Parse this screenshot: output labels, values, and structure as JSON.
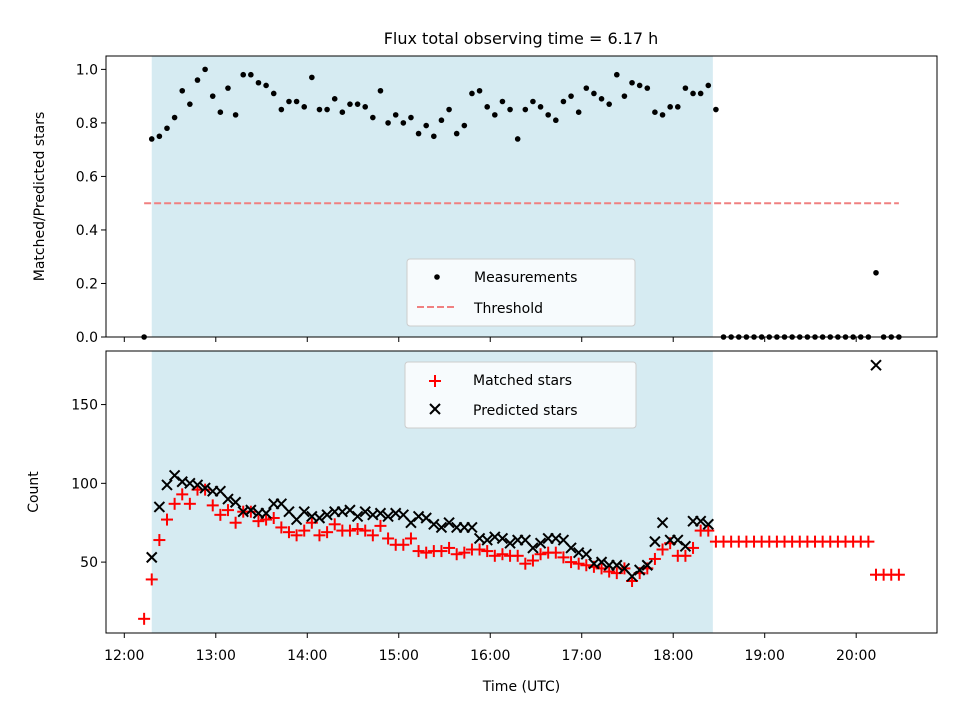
{
  "chart_data": {
    "title": "Flux total observing time = 6.17 h",
    "shaded_interval": [
      "12:18",
      "18:26"
    ],
    "shade_color": "#add8e6",
    "top": {
      "type": "scatter",
      "ylabel": "Matched/Predicted stars",
      "ylim": [
        0,
        1.05
      ],
      "yticks": [
        0.0,
        0.2,
        0.4,
        0.6,
        0.8,
        1.0
      ],
      "ytick_labels": [
        "0.0",
        "0.2",
        "0.4",
        "0.6",
        "0.8",
        "1.0"
      ],
      "legend": [
        "Measurements",
        "Threshold"
      ],
      "legend_placement": "lower center",
      "series": [
        {
          "name": "Measurements",
          "marker": "dot",
          "color": "#000000",
          "x": [
            "12:13",
            "12:18",
            "12:23",
            "12:28",
            "12:33",
            "12:38",
            "12:43",
            "12:48",
            "12:53",
            "12:58",
            "13:03",
            "13:08",
            "13:13",
            "13:18",
            "13:23",
            "13:28",
            "13:33",
            "13:38",
            "13:43",
            "13:48",
            "13:53",
            "13:58",
            "14:03",
            "14:08",
            "14:13",
            "14:18",
            "14:23",
            "14:28",
            "14:33",
            "14:38",
            "14:43",
            "14:48",
            "14:53",
            "14:58",
            "15:03",
            "15:08",
            "15:13",
            "15:18",
            "15:23",
            "15:28",
            "15:33",
            "15:38",
            "15:43",
            "15:48",
            "15:53",
            "15:58",
            "16:03",
            "16:08",
            "16:13",
            "16:18",
            "16:23",
            "16:28",
            "16:33",
            "16:38",
            "16:43",
            "16:48",
            "16:53",
            "16:58",
            "17:03",
            "17:08",
            "17:13",
            "17:18",
            "17:23",
            "17:28",
            "17:33",
            "17:38",
            "17:43",
            "17:48",
            "17:53",
            "17:58",
            "18:03",
            "18:08",
            "18:13",
            "18:18",
            "18:23",
            "18:28",
            "18:33",
            "18:38",
            "18:43",
            "18:48",
            "18:53",
            "18:58",
            "19:03",
            "19:08",
            "19:13",
            "19:18",
            "19:23",
            "19:28",
            "19:33",
            "19:38",
            "19:43",
            "19:48",
            "19:53",
            "19:58",
            "20:03",
            "20:08",
            "20:13",
            "20:18",
            "20:23",
            "20:28"
          ],
          "y": [
            0.0,
            0.74,
            0.75,
            0.78,
            0.82,
            0.92,
            0.87,
            0.96,
            1.0,
            0.9,
            0.84,
            0.93,
            0.83,
            0.98,
            0.98,
            0.95,
            0.94,
            0.91,
            0.85,
            0.88,
            0.88,
            0.86,
            0.97,
            0.85,
            0.85,
            0.89,
            0.84,
            0.87,
            0.87,
            0.86,
            0.82,
            0.92,
            0.8,
            0.83,
            0.8,
            0.82,
            0.76,
            0.79,
            0.75,
            0.81,
            0.85,
            0.76,
            0.79,
            0.91,
            0.92,
            0.86,
            0.83,
            0.88,
            0.85,
            0.74,
            0.85,
            0.88,
            0.86,
            0.83,
            0.81,
            0.88,
            0.9,
            0.84,
            0.93,
            0.91,
            0.89,
            0.87,
            0.98,
            0.9,
            0.95,
            0.94,
            0.93,
            0.84,
            0.83,
            0.86,
            0.86,
            0.93,
            0.91,
            0.91,
            0.94,
            0.85,
            0.0,
            0.0,
            0.0,
            0.0,
            0.0,
            0.0,
            0.0,
            0.0,
            0.0,
            0.0,
            0.0,
            0.0,
            0.0,
            0.0,
            0.0,
            0.0,
            0.0,
            0.0,
            0.0,
            0.0,
            0.24,
            0.0,
            0.0,
            0.0
          ]
        },
        {
          "name": "Threshold",
          "line": "dashed",
          "color": "#f08080",
          "x": [
            "12:13",
            "20:28"
          ],
          "y": [
            0.5,
            0.5
          ]
        }
      ]
    },
    "bottom": {
      "type": "scatter",
      "ylabel": "Count",
      "xlabel": "Time (UTC)",
      "ylim": [
        5,
        184
      ],
      "yticks": [
        50,
        100,
        150
      ],
      "ytick_labels": [
        "50",
        "100",
        "150"
      ],
      "xlim": [
        "11:48",
        "20:53"
      ],
      "xticks": [
        "12:00",
        "13:00",
        "14:00",
        "15:00",
        "16:00",
        "17:00",
        "18:00",
        "19:00",
        "20:00"
      ],
      "xtick_labels": [
        "12:00",
        "13:00",
        "14:00",
        "15:00",
        "16:00",
        "17:00",
        "18:00",
        "19:00",
        "20:00"
      ],
      "legend": [
        "Matched stars",
        "Predicted stars"
      ],
      "legend_placement": "upper center",
      "series": [
        {
          "name": "Matched stars",
          "marker": "plus",
          "color": "#ff0000",
          "x": [
            "12:13",
            "12:18",
            "12:23",
            "12:28",
            "12:33",
            "12:38",
            "12:43",
            "12:48",
            "12:53",
            "12:58",
            "13:03",
            "13:08",
            "13:13",
            "13:18",
            "13:23",
            "13:28",
            "13:33",
            "13:38",
            "13:43",
            "13:48",
            "13:53",
            "13:58",
            "14:03",
            "14:08",
            "14:13",
            "14:18",
            "14:23",
            "14:28",
            "14:33",
            "14:38",
            "14:43",
            "14:48",
            "14:53",
            "14:58",
            "15:03",
            "15:08",
            "15:13",
            "15:18",
            "15:23",
            "15:28",
            "15:33",
            "15:38",
            "15:43",
            "15:48",
            "15:53",
            "15:58",
            "16:03",
            "16:08",
            "16:13",
            "16:18",
            "16:23",
            "16:28",
            "16:33",
            "16:38",
            "16:43",
            "16:48",
            "16:53",
            "16:58",
            "17:03",
            "17:08",
            "17:13",
            "17:18",
            "17:23",
            "17:28",
            "17:33",
            "17:38",
            "17:43",
            "17:48",
            "17:53",
            "17:58",
            "18:03",
            "18:08",
            "18:13",
            "18:18",
            "18:23",
            "18:28",
            "18:33",
            "18:38",
            "18:43",
            "18:48",
            "18:53",
            "18:58",
            "19:03",
            "19:08",
            "19:13",
            "19:18",
            "19:23",
            "19:28",
            "19:33",
            "19:38",
            "19:43",
            "19:48",
            "19:53",
            "19:58",
            "20:03",
            "20:08",
            "20:13",
            "20:18",
            "20:23",
            "20:28"
          ],
          "y": [
            14,
            39,
            64,
            77,
            87,
            93,
            87,
            96,
            96,
            86,
            80,
            83,
            75,
            82,
            82,
            76,
            77,
            78,
            72,
            69,
            67,
            70,
            75,
            67,
            69,
            74,
            70,
            70,
            71,
            70,
            67,
            73,
            65,
            61,
            61,
            65,
            57,
            56,
            57,
            57,
            59,
            55,
            56,
            58,
            58,
            57,
            54,
            55,
            54,
            54,
            49,
            51,
            55,
            56,
            56,
            53,
            50,
            49,
            48,
            47,
            46,
            44,
            43,
            46,
            38,
            43,
            46,
            52,
            58,
            62,
            54,
            54,
            59,
            70,
            70,
            63,
            63,
            63,
            63,
            63,
            63,
            63,
            63,
            63,
            63,
            63,
            63,
            63,
            63,
            63,
            63,
            63,
            63,
            63,
            63,
            63,
            42,
            42,
            42,
            42
          ]
        },
        {
          "name": "Predicted stars",
          "marker": "x",
          "color": "#000000",
          "x": [
            "12:18",
            "12:23",
            "12:28",
            "12:33",
            "12:38",
            "12:43",
            "12:48",
            "12:53",
            "12:58",
            "13:03",
            "13:08",
            "13:13",
            "13:18",
            "13:23",
            "13:28",
            "13:33",
            "13:38",
            "13:43",
            "13:48",
            "13:53",
            "13:58",
            "14:03",
            "14:08",
            "14:13",
            "14:18",
            "14:23",
            "14:28",
            "14:33",
            "14:38",
            "14:43",
            "14:48",
            "14:53",
            "14:58",
            "15:03",
            "15:08",
            "15:13",
            "15:18",
            "15:23",
            "15:28",
            "15:33",
            "15:38",
            "15:43",
            "15:48",
            "15:53",
            "15:58",
            "16:03",
            "16:08",
            "16:13",
            "16:18",
            "16:23",
            "16:28",
            "16:33",
            "16:38",
            "16:43",
            "16:48",
            "16:53",
            "16:58",
            "17:03",
            "17:08",
            "17:13",
            "17:18",
            "17:23",
            "17:28",
            "17:33",
            "17:38",
            "17:43",
            "17:48",
            "17:53",
            "17:58",
            "18:03",
            "18:08",
            "18:13",
            "18:18",
            "18:23",
            "20:13"
          ],
          "y": [
            53,
            85,
            99,
            105,
            101,
            100,
            99,
            97,
            95,
            95,
            90,
            88,
            82,
            83,
            81,
            81,
            87,
            87,
            82,
            77,
            82,
            79,
            78,
            80,
            82,
            82,
            83,
            79,
            82,
            80,
            81,
            79,
            81,
            80,
            75,
            79,
            78,
            74,
            72,
            75,
            72,
            72,
            72,
            65,
            64,
            66,
            65,
            62,
            64,
            64,
            59,
            62,
            65,
            65,
            64,
            59,
            56,
            55,
            49,
            50,
            48,
            48,
            46,
            41,
            45,
            48,
            63,
            75,
            64,
            64,
            60,
            76,
            76,
            74,
            175
          ]
        }
      ]
    }
  }
}
